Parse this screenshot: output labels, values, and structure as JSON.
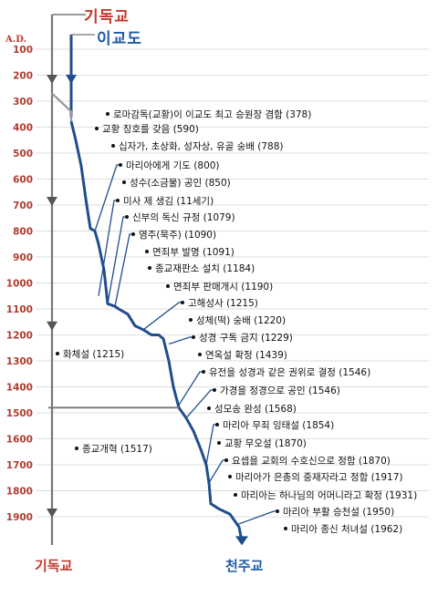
{
  "headers": {
    "protestant_top": "기독교",
    "heresy_top": "이교도",
    "ad_label": "A.D.",
    "protestant_bottom": "기독교",
    "catholic_bottom": "천주교"
  },
  "colors": {
    "protestant": "#c0392b",
    "heresy": "#1f5aa6",
    "grid": "#bbbbbb",
    "gray_line": "#777777",
    "blue_line": "#1f4e8c"
  },
  "years": [
    "100",
    "200",
    "300",
    "400",
    "500",
    "600",
    "700",
    "800",
    "900",
    "1000",
    "1100",
    "1200",
    "1300",
    "1400",
    "1500",
    "1600",
    "1700",
    "1800",
    "1900"
  ],
  "right_events": [
    {
      "year": 378,
      "label": "로마감독(교황)이 이교도 최고 승원장 겸함 (378)"
    },
    {
      "year": 590,
      "label": "교황 칭호를 갖음 (590)"
    },
    {
      "year": 788,
      "label": "십자가, 초상화, 성자상, 유골 숭배 (788)"
    },
    {
      "year": 800,
      "label": "마리아에게 기도 (800)"
    },
    {
      "year": 850,
      "label": "성수(소금물) 공인 (850)"
    },
    {
      "year": 1100,
      "label": "미사 제 생김 (11세기)"
    },
    {
      "year": 1079,
      "label": "신부의 독신 규정 (1079)"
    },
    {
      "year": 1090,
      "label": "염주(묵주) (1090)"
    },
    {
      "year": 1091,
      "label": "면죄부 발명 (1091)"
    },
    {
      "year": 1184,
      "label": "종교재판소 설치 (1184)"
    },
    {
      "year": 1190,
      "label": "면죄부 판매개시 (1190)"
    },
    {
      "year": 1215,
      "label": "고해성사 (1215)"
    },
    {
      "year": 1220,
      "label": "성체(떡) 숭배 (1220)"
    },
    {
      "year": 1229,
      "label": "성경 구독 금지 (1229)"
    },
    {
      "year": 1439,
      "label": "연옥설 확정 (1439)"
    },
    {
      "year": 1546,
      "label": "유전을 성경과 같은 권위로 결정 (1546)"
    },
    {
      "year": 1546,
      "label": "가경을 정경으로 공인 (1546)"
    },
    {
      "year": 1568,
      "label": "성모송 완성 (1568)"
    },
    {
      "year": 1854,
      "label": "마리아 무죄 잉태설 (1854)"
    },
    {
      "year": 1870,
      "label": "교황 무오설 (1870)"
    },
    {
      "year": 1870,
      "label": "요셉을 교회의 수호신으로 정함 (1870)"
    },
    {
      "year": 1917,
      "label": "마리아가 은총의 중재자라고 정함 (1917)"
    },
    {
      "year": 1931,
      "label": "마리아는 하나님의 어머니라고 확정 (1931)"
    },
    {
      "year": 1950,
      "label": "마리아 부활 승천설 (1950)"
    },
    {
      "year": 1962,
      "label": "마리아 종신 처녀설 (1962)"
    }
  ],
  "left_events": [
    {
      "year": 1215,
      "label": "화체설 (1215)"
    },
    {
      "year": 1517,
      "label": "종교개혁 (1517)"
    }
  ]
}
